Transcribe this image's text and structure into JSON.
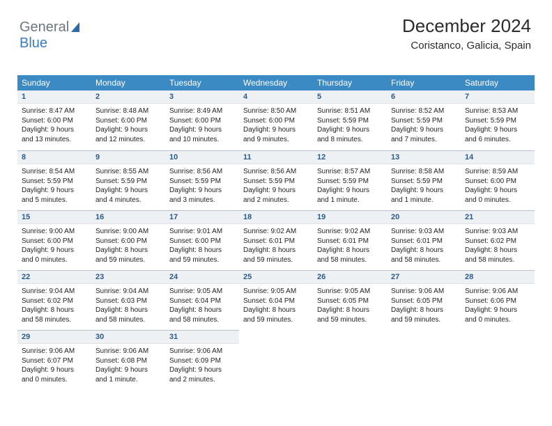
{
  "logo": {
    "word1": "General",
    "word2": "Blue"
  },
  "header": {
    "title": "December 2024",
    "subtitle": "Coristanco, Galicia, Spain"
  },
  "colors": {
    "header_bg": "#3b8ac4",
    "header_text": "#ffffff",
    "daynum_bg": "#eef1f4",
    "daynum_text": "#2c5a88",
    "body_text": "#222222",
    "logo_gray": "#6c7680",
    "logo_blue": "#3b7bbf",
    "grid_border": "#b8c2cf"
  },
  "day_headers": [
    "Sunday",
    "Monday",
    "Tuesday",
    "Wednesday",
    "Thursday",
    "Friday",
    "Saturday"
  ],
  "weeks": [
    [
      {
        "n": "1",
        "sr": "8:47 AM",
        "ss": "6:00 PM",
        "dl": "9 hours and 13 minutes."
      },
      {
        "n": "2",
        "sr": "8:48 AM",
        "ss": "6:00 PM",
        "dl": "9 hours and 12 minutes."
      },
      {
        "n": "3",
        "sr": "8:49 AM",
        "ss": "6:00 PM",
        "dl": "9 hours and 10 minutes."
      },
      {
        "n": "4",
        "sr": "8:50 AM",
        "ss": "6:00 PM",
        "dl": "9 hours and 9 minutes."
      },
      {
        "n": "5",
        "sr": "8:51 AM",
        "ss": "5:59 PM",
        "dl": "9 hours and 8 minutes."
      },
      {
        "n": "6",
        "sr": "8:52 AM",
        "ss": "5:59 PM",
        "dl": "9 hours and 7 minutes."
      },
      {
        "n": "7",
        "sr": "8:53 AM",
        "ss": "5:59 PM",
        "dl": "9 hours and 6 minutes."
      }
    ],
    [
      {
        "n": "8",
        "sr": "8:54 AM",
        "ss": "5:59 PM",
        "dl": "9 hours and 5 minutes."
      },
      {
        "n": "9",
        "sr": "8:55 AM",
        "ss": "5:59 PM",
        "dl": "9 hours and 4 minutes."
      },
      {
        "n": "10",
        "sr": "8:56 AM",
        "ss": "5:59 PM",
        "dl": "9 hours and 3 minutes."
      },
      {
        "n": "11",
        "sr": "8:56 AM",
        "ss": "5:59 PM",
        "dl": "9 hours and 2 minutes."
      },
      {
        "n": "12",
        "sr": "8:57 AM",
        "ss": "5:59 PM",
        "dl": "9 hours and 1 minute."
      },
      {
        "n": "13",
        "sr": "8:58 AM",
        "ss": "5:59 PM",
        "dl": "9 hours and 1 minute."
      },
      {
        "n": "14",
        "sr": "8:59 AM",
        "ss": "6:00 PM",
        "dl": "9 hours and 0 minutes."
      }
    ],
    [
      {
        "n": "15",
        "sr": "9:00 AM",
        "ss": "6:00 PM",
        "dl": "9 hours and 0 minutes."
      },
      {
        "n": "16",
        "sr": "9:00 AM",
        "ss": "6:00 PM",
        "dl": "8 hours and 59 minutes."
      },
      {
        "n": "17",
        "sr": "9:01 AM",
        "ss": "6:00 PM",
        "dl": "8 hours and 59 minutes."
      },
      {
        "n": "18",
        "sr": "9:02 AM",
        "ss": "6:01 PM",
        "dl": "8 hours and 59 minutes."
      },
      {
        "n": "19",
        "sr": "9:02 AM",
        "ss": "6:01 PM",
        "dl": "8 hours and 58 minutes."
      },
      {
        "n": "20",
        "sr": "9:03 AM",
        "ss": "6:01 PM",
        "dl": "8 hours and 58 minutes."
      },
      {
        "n": "21",
        "sr": "9:03 AM",
        "ss": "6:02 PM",
        "dl": "8 hours and 58 minutes."
      }
    ],
    [
      {
        "n": "22",
        "sr": "9:04 AM",
        "ss": "6:02 PM",
        "dl": "8 hours and 58 minutes."
      },
      {
        "n": "23",
        "sr": "9:04 AM",
        "ss": "6:03 PM",
        "dl": "8 hours and 58 minutes."
      },
      {
        "n": "24",
        "sr": "9:05 AM",
        "ss": "6:04 PM",
        "dl": "8 hours and 58 minutes."
      },
      {
        "n": "25",
        "sr": "9:05 AM",
        "ss": "6:04 PM",
        "dl": "8 hours and 59 minutes."
      },
      {
        "n": "26",
        "sr": "9:05 AM",
        "ss": "6:05 PM",
        "dl": "8 hours and 59 minutes."
      },
      {
        "n": "27",
        "sr": "9:06 AM",
        "ss": "6:05 PM",
        "dl": "8 hours and 59 minutes."
      },
      {
        "n": "28",
        "sr": "9:06 AM",
        "ss": "6:06 PM",
        "dl": "9 hours and 0 minutes."
      }
    ],
    [
      {
        "n": "29",
        "sr": "9:06 AM",
        "ss": "6:07 PM",
        "dl": "9 hours and 0 minutes."
      },
      {
        "n": "30",
        "sr": "9:06 AM",
        "ss": "6:08 PM",
        "dl": "9 hours and 1 minute."
      },
      {
        "n": "31",
        "sr": "9:06 AM",
        "ss": "6:09 PM",
        "dl": "9 hours and 2 minutes."
      },
      null,
      null,
      null,
      null
    ]
  ],
  "labels": {
    "sunrise": "Sunrise:",
    "sunset": "Sunset:",
    "daylight": "Daylight:"
  }
}
